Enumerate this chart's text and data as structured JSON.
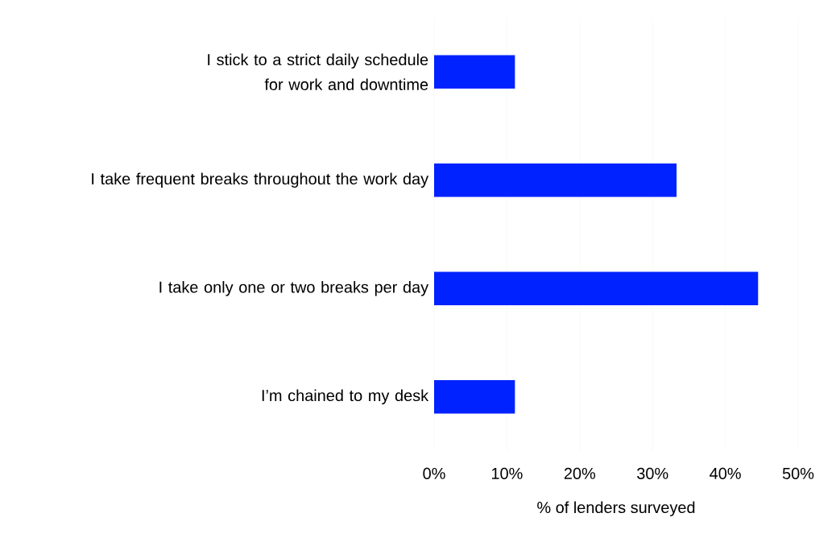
{
  "chart_data": {
    "type": "bar",
    "orientation": "horizontal",
    "xlabel": "% of lenders surveyed",
    "categories": [
      "I stick to a strict daily schedule for work and downtime",
      "I take frequent breaks throughout the work day",
      "I take only one or two breaks per day",
      "I’m chained to my desk"
    ],
    "values": [
      11.1,
      33.3,
      44.5,
      11.1
    ],
    "color": "#0022ff",
    "xlim": [
      0,
      50
    ],
    "xticks": [
      {
        "value": 0,
        "label": "0%"
      },
      {
        "value": 10,
        "label": "10%"
      },
      {
        "value": 20,
        "label": "20%"
      },
      {
        "value": 30,
        "label": "30%"
      },
      {
        "value": 40,
        "label": "40%"
      },
      {
        "value": 50,
        "label": "50%"
      }
    ],
    "grid": "x"
  }
}
